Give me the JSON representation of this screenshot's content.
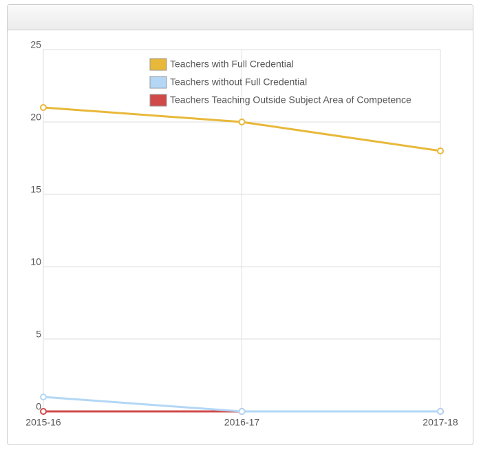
{
  "chart_data": {
    "type": "line",
    "categories": [
      "2015-16",
      "2016-17",
      "2017-18"
    ],
    "series": [
      {
        "name": "Teachers with Full Credential",
        "color": "#e8b83a",
        "values": [
          21,
          20,
          18
        ]
      },
      {
        "name": "Teachers without Full Credential",
        "color": "#b3d7f5",
        "values": [
          1,
          0,
          0
        ]
      },
      {
        "name": "Teachers Teaching Outside Subject Area of Competence",
        "color": "#d04a4a",
        "values": [
          0,
          0,
          0
        ]
      }
    ],
    "ylim": [
      0,
      25
    ],
    "yticks": [
      0,
      5,
      10,
      15,
      20,
      25
    ],
    "grid": true
  }
}
